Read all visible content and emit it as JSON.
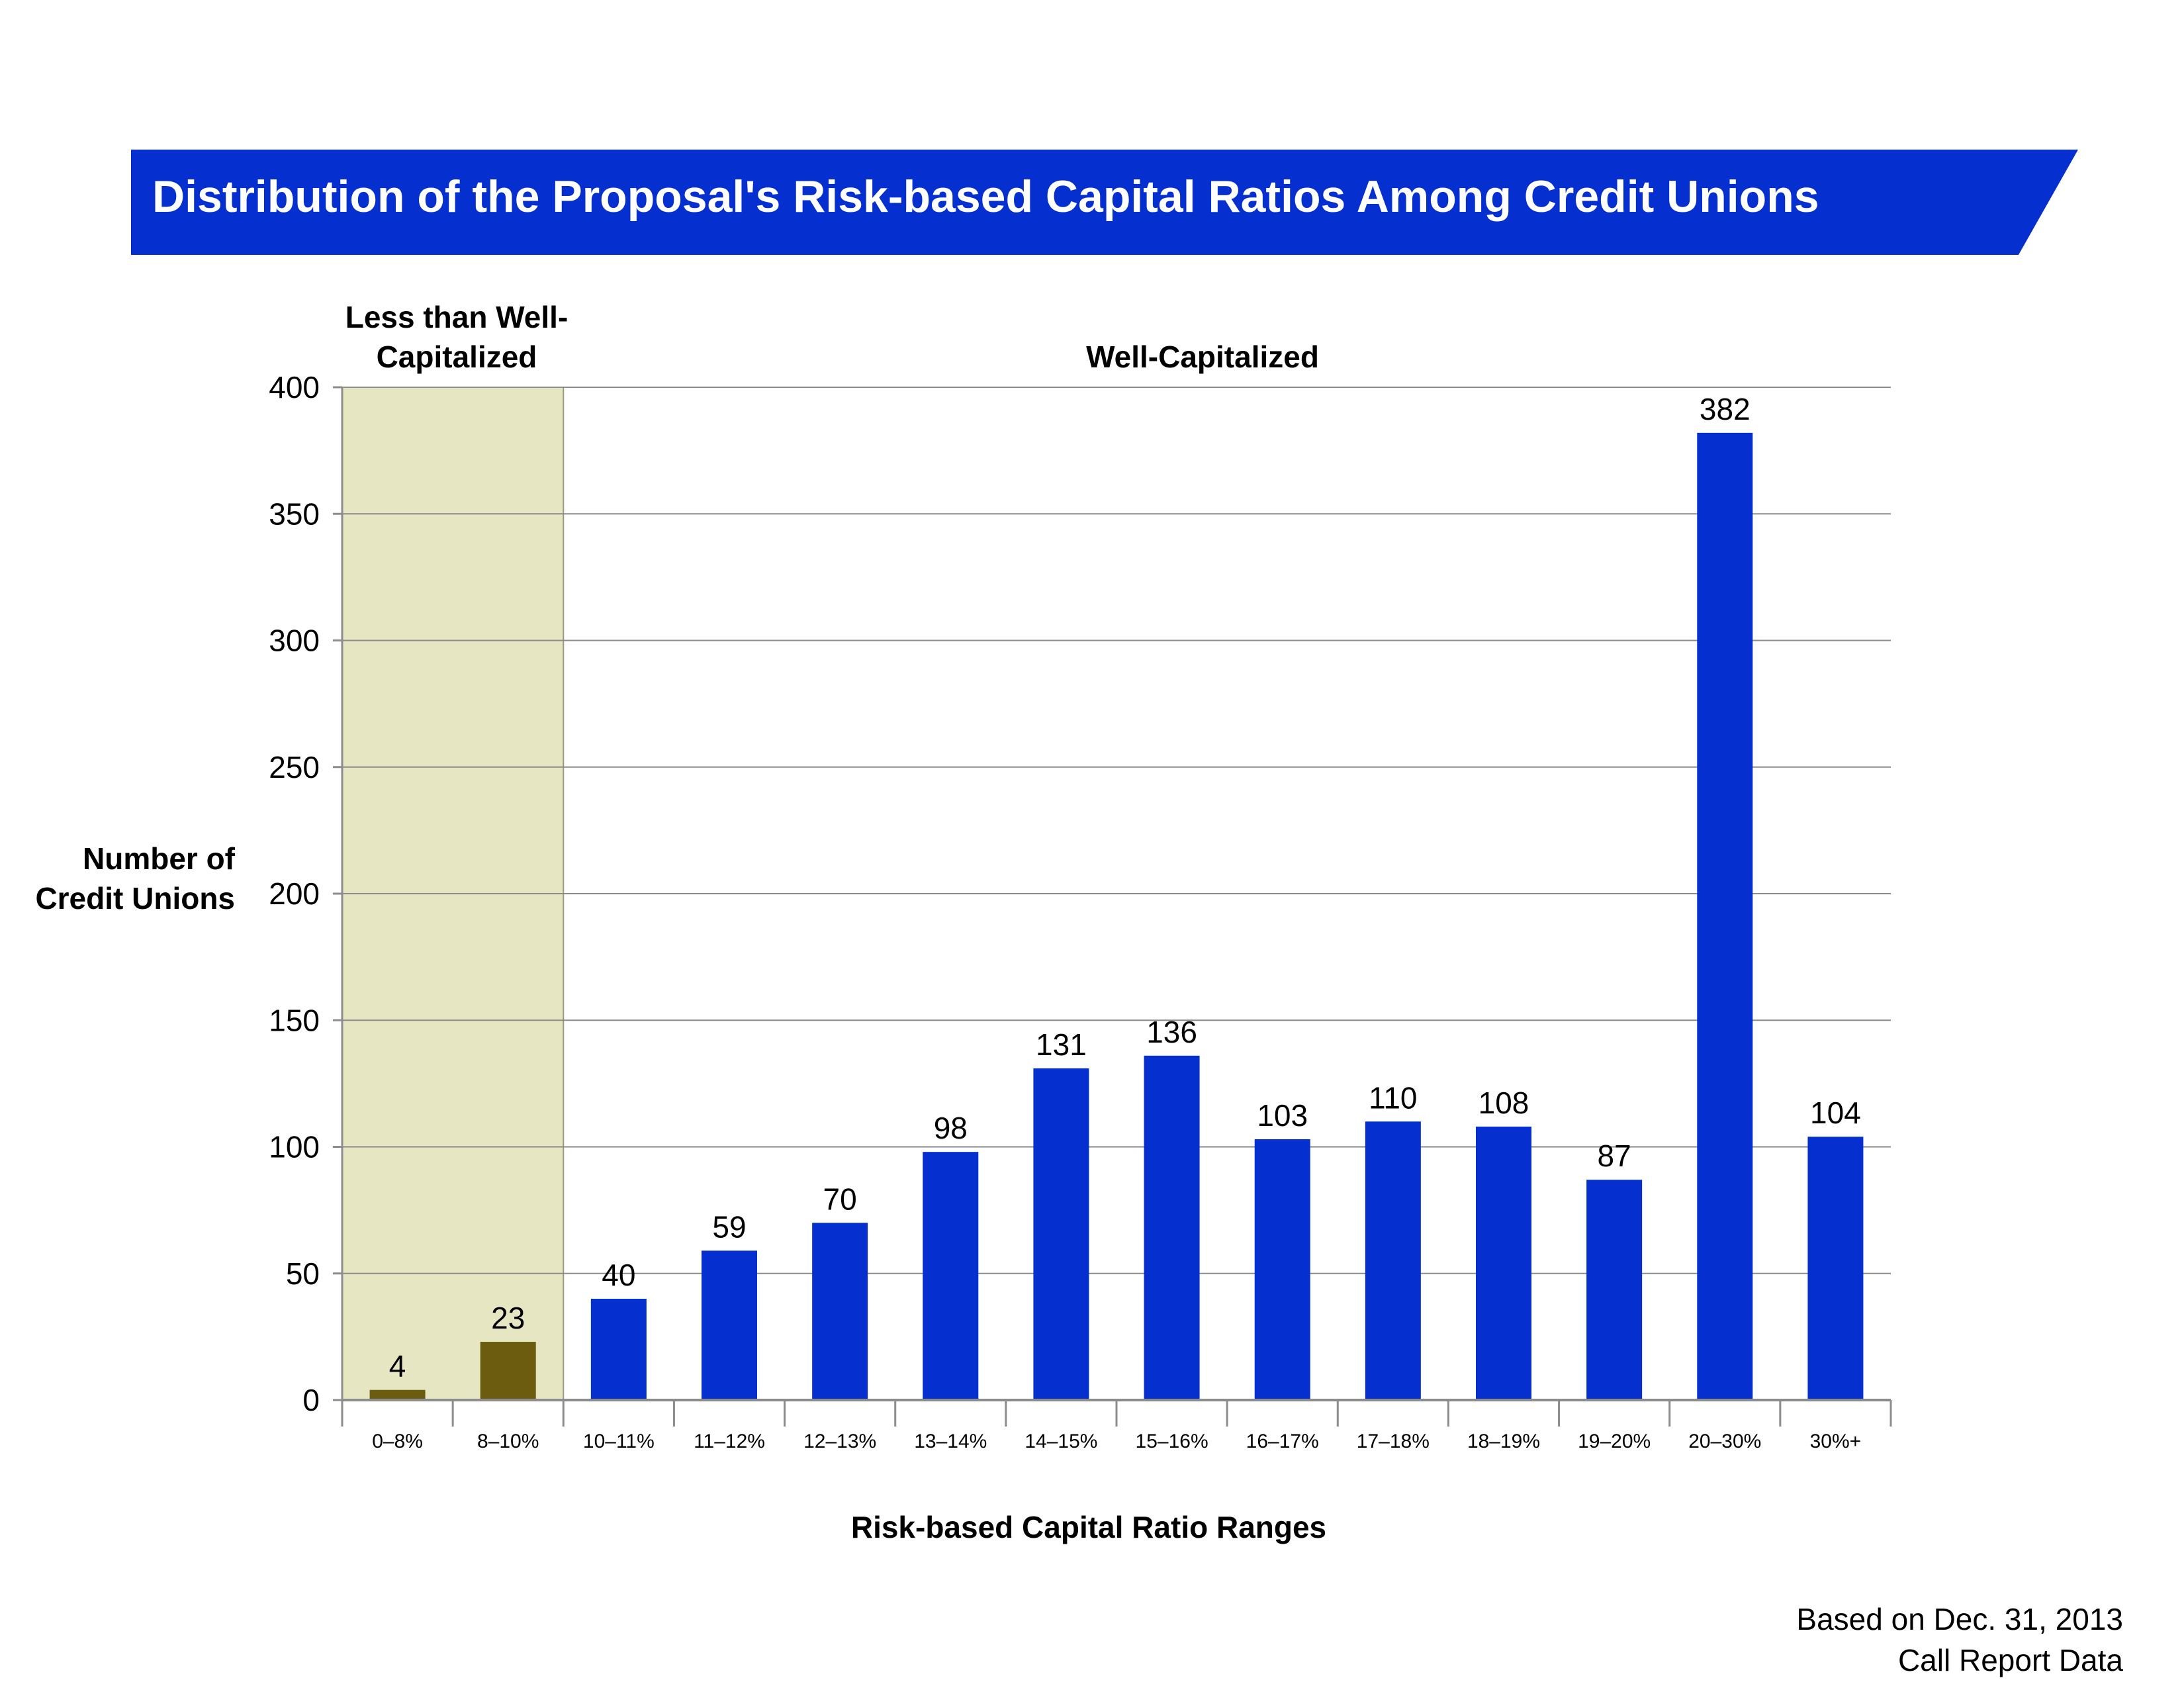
{
  "chart_data": {
    "type": "bar",
    "title": "Distribution of the Proposal's Risk-based Capital Ratios Among Credit Unions",
    "xlabel": "Risk-based Capital Ratio Ranges",
    "ylabel_line1": "Number of",
    "ylabel_line2": "Credit Unions",
    "categories": [
      "0–8%",
      "8–10%",
      "10–11%",
      "11–12%",
      "12–13%",
      "13–14%",
      "14–15%",
      "15–16%",
      "16–17%",
      "17–18%",
      "18–19%",
      "19–20%",
      "20–30%",
      "30%+"
    ],
    "values": [
      4,
      23,
      40,
      59,
      70,
      98,
      131,
      136,
      103,
      110,
      108,
      87,
      382,
      104
    ],
    "ylim": [
      0,
      400
    ],
    "yticks": [
      0,
      50,
      100,
      150,
      200,
      250,
      300,
      350,
      400
    ],
    "grid": true,
    "regions": [
      {
        "label_line1": "Less than Well-",
        "label_line2": "Capitalized",
        "categories": [
          "0–8%",
          "8–10%"
        ],
        "bar_color": "#6b5c0f",
        "background": "#e6e6c2"
      },
      {
        "label_line1": "Well-Capitalized",
        "label_line2": "",
        "categories": [
          "10–11%",
          "11–12%",
          "12–13%",
          "13–14%",
          "14–15%",
          "15–16%",
          "16–17%",
          "17–18%",
          "18–19%",
          "19–20%",
          "20–30%",
          "30%+"
        ],
        "bar_color": "#0530cf",
        "background": "#ffffff"
      }
    ]
  },
  "banner_color": "#0530cf",
  "note_line1": "Based on Dec. 31, 2013",
  "note_line2": "Call Report Data"
}
